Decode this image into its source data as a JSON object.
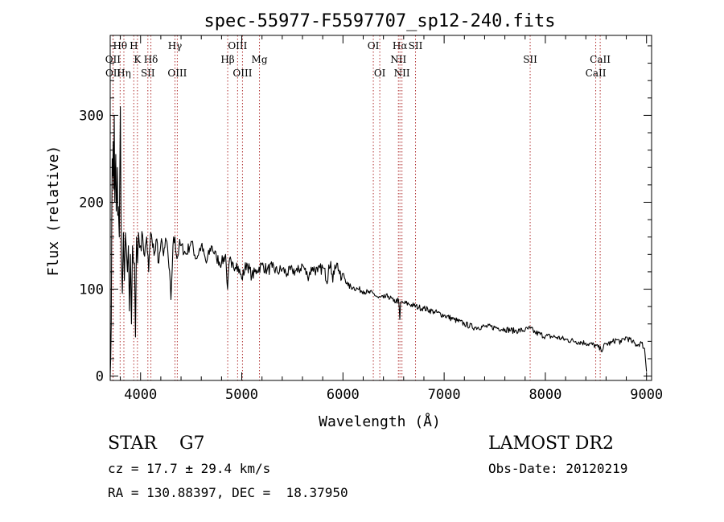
{
  "chart_data": {
    "type": "line",
    "title": "spec-55977-F5597707_sp12-240.fits",
    "xlabel": "Wavelength (Å)",
    "ylabel": "Flux (relative)",
    "xlim": [
      3700,
      9050
    ],
    "ylim": [
      -5,
      392
    ],
    "xticks": [
      4000,
      5000,
      6000,
      7000,
      8000,
      9000
    ],
    "yticks": [
      0,
      100,
      200,
      300
    ],
    "grid": false,
    "legend": "none",
    "series": [
      {
        "x": [
          3700,
          3705,
          3710,
          3715,
          3720,
          3725,
          3730,
          3735,
          3740,
          3745,
          3750,
          3755,
          3760,
          3765,
          3770,
          3775,
          3780,
          3790,
          3800,
          3810,
          3820,
          3830,
          3840,
          3850,
          3860,
          3870,
          3880,
          3890,
          3900,
          3910,
          3920,
          3930,
          3940,
          3950,
          3960,
          3970,
          3980,
          3990,
          4000,
          4020,
          4040,
          4060,
          4080,
          4100,
          4120,
          4140,
          4160,
          4180,
          4200,
          4220,
          4240,
          4260,
          4280,
          4300,
          4320,
          4340,
          4360,
          4380,
          4400,
          4450,
          4500,
          4550,
          4600,
          4650,
          4700,
          4750,
          4800,
          4840,
          4860,
          4880,
          4900,
          4950,
          5000,
          5050,
          5100,
          5150,
          5200,
          5250,
          5300,
          5350,
          5400,
          5450,
          5500,
          5550,
          5600,
          5650,
          5700,
          5750,
          5800,
          5850,
          5860,
          5880,
          5900,
          5920,
          5940,
          5960,
          5980,
          6000,
          6050,
          6100,
          6150,
          6200,
          6250,
          6300,
          6350,
          6400,
          6450,
          6500,
          6550,
          6562,
          6570,
          6600,
          6650,
          6700,
          6750,
          6800,
          6900,
          7000,
          7100,
          7200,
          7300,
          7400,
          7500,
          7600,
          7700,
          7800,
          7850,
          7900,
          8000,
          8100,
          8200,
          8300,
          8400,
          8500,
          8550,
          8600,
          8650,
          8700,
          8750,
          8800,
          8850,
          8900,
          8950,
          8980,
          9000
        ],
        "y": [
          0,
          20,
          60,
          180,
          250,
          230,
          270,
          215,
          300,
          200,
          230,
          255,
          190,
          205,
          240,
          185,
          195,
          160,
          310,
          140,
          95,
          165,
          110,
          165,
          145,
          120,
          150,
          75,
          140,
          60,
          150,
          130,
          130,
          45,
          160,
          130,
          165,
          148,
          150,
          162,
          138,
          160,
          120,
          165,
          148,
          142,
          158,
          130,
          152,
          145,
          148,
          155,
          125,
          88,
          150,
          160,
          135,
          148,
          150,
          140,
          155,
          135,
          150,
          130,
          150,
          136,
          130,
          140,
          100,
          135,
          125,
          130,
          112,
          130,
          115,
          122,
          128,
          122,
          125,
          120,
          123,
          118,
          122,
          120,
          128,
          115,
          125,
          120,
          125,
          110,
          128,
          132,
          108,
          128,
          130,
          122,
          110,
          118,
          104,
          102,
          100,
          98,
          96,
          95,
          90,
          90,
          92,
          86,
          87,
          65,
          85,
          84,
          83,
          81,
          79,
          78,
          74,
          70,
          65,
          60,
          56,
          57,
          56,
          54,
          52,
          53,
          55,
          50,
          46,
          45,
          42,
          40,
          38,
          35,
          30,
          37,
          38,
          42,
          39,
          45,
          40,
          36,
          38,
          32,
          5
        ]
      }
    ],
    "line_marks": [
      {
        "label": "Hθ",
        "x": 3798,
        "row": 1
      },
      {
        "label": "H",
        "x": 3933,
        "row": 1
      },
      {
        "label": "Hγ",
        "x": 4340,
        "row": 1
      },
      {
        "label": "OIII",
        "x": 4959,
        "row": 1
      },
      {
        "label": "OI",
        "x": 6300,
        "row": 1
      },
      {
        "label": "Hα",
        "x": 6563,
        "row": 1
      },
      {
        "label": "SII",
        "x": 6717,
        "row": 1
      },
      {
        "label": "OII",
        "x": 3727,
        "row": 2
      },
      {
        "label": "K",
        "x": 3969,
        "row": 2
      },
      {
        "label": "Hδ",
        "x": 4102,
        "row": 2
      },
      {
        "label": "Hβ",
        "x": 4861,
        "row": 2
      },
      {
        "label": "Mg",
        "x": 5175,
        "row": 2
      },
      {
        "label": "NII",
        "x": 6548,
        "row": 2
      },
      {
        "label": "SII",
        "x": 7850,
        "row": 2
      },
      {
        "label": "CaII",
        "x": 8542,
        "row": 2
      },
      {
        "label": "OII",
        "x": 3729,
        "row": 3
      },
      {
        "label": "Hη",
        "x": 3835,
        "row": 3
      },
      {
        "label": "SII",
        "x": 4072,
        "row": 3
      },
      {
        "label": "OIII",
        "x": 4363,
        "row": 3
      },
      {
        "label": "OIII",
        "x": 5007,
        "row": 3
      },
      {
        "label": "OI",
        "x": 6364,
        "row": 3
      },
      {
        "label": "NII",
        "x": 6583,
        "row": 3
      },
      {
        "label": "CaII",
        "x": 8498,
        "row": 3
      }
    ]
  },
  "info": {
    "object_class": "STAR    G7",
    "survey": "LAMOST DR2",
    "redshift": "cz = 17.7 ± 29.4 km/s",
    "obs_date": "Obs-Date: 20120219",
    "coords": "RA = 130.88397, DEC =  18.37950"
  }
}
